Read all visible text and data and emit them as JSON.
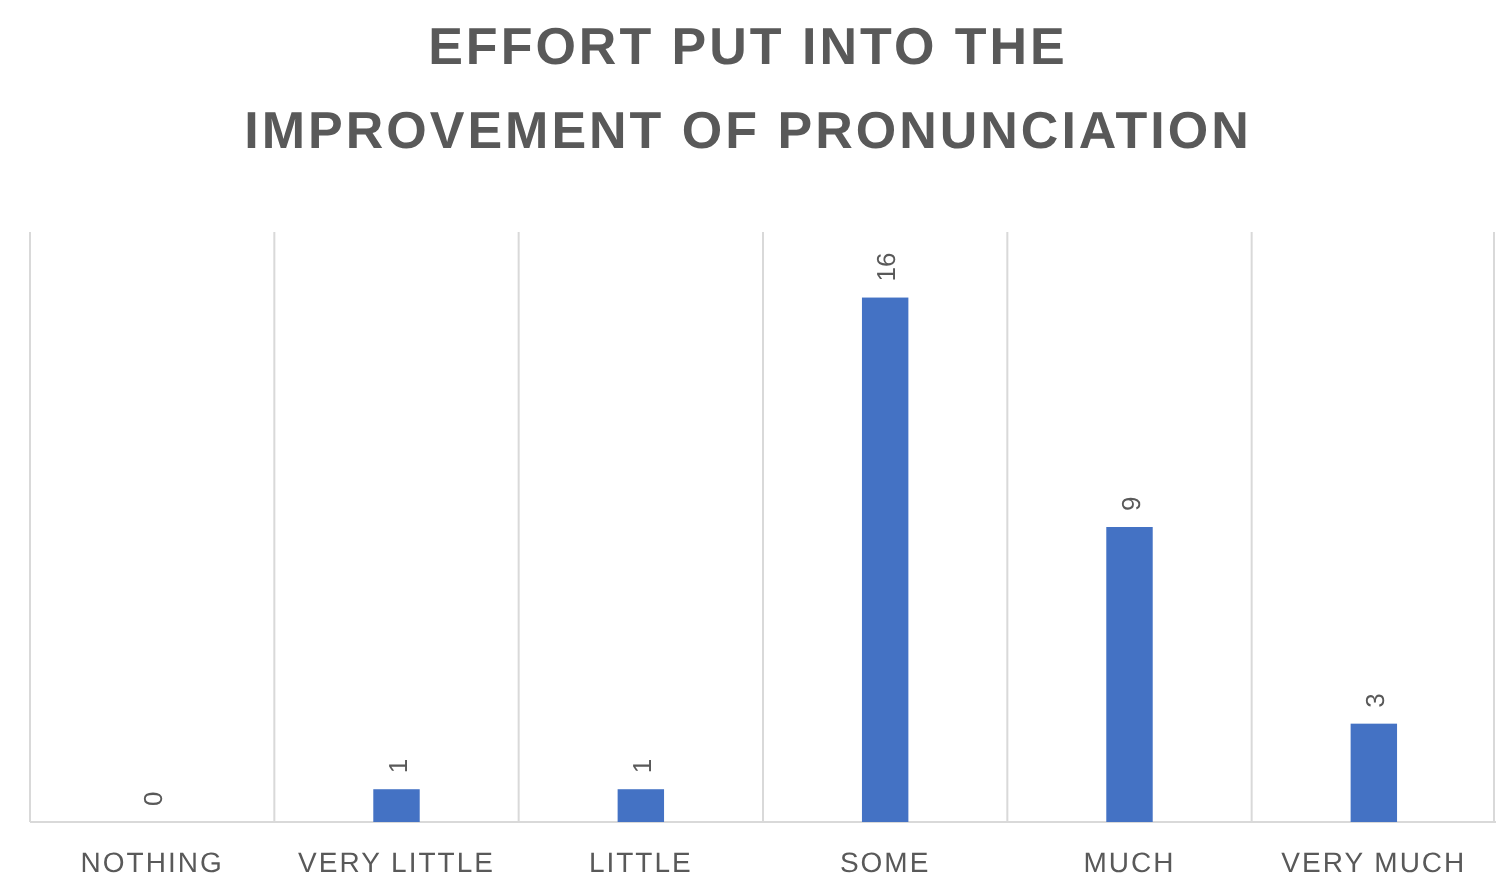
{
  "chart_data": {
    "type": "bar",
    "title": "EFFORT PUT INTO THE IMPROVEMENT OF PRONUNCIATION",
    "categories": [
      "NOTHING",
      "VERY LITTLE",
      "LITTLE",
      "SOME",
      "MUCH",
      "VERY MUCH"
    ],
    "values": [
      0,
      1,
      1,
      16,
      9,
      3
    ],
    "color": "#4472c4",
    "ylim": [
      0,
      18
    ],
    "grid": "x",
    "data_labels": true,
    "tick_labels": "x"
  }
}
